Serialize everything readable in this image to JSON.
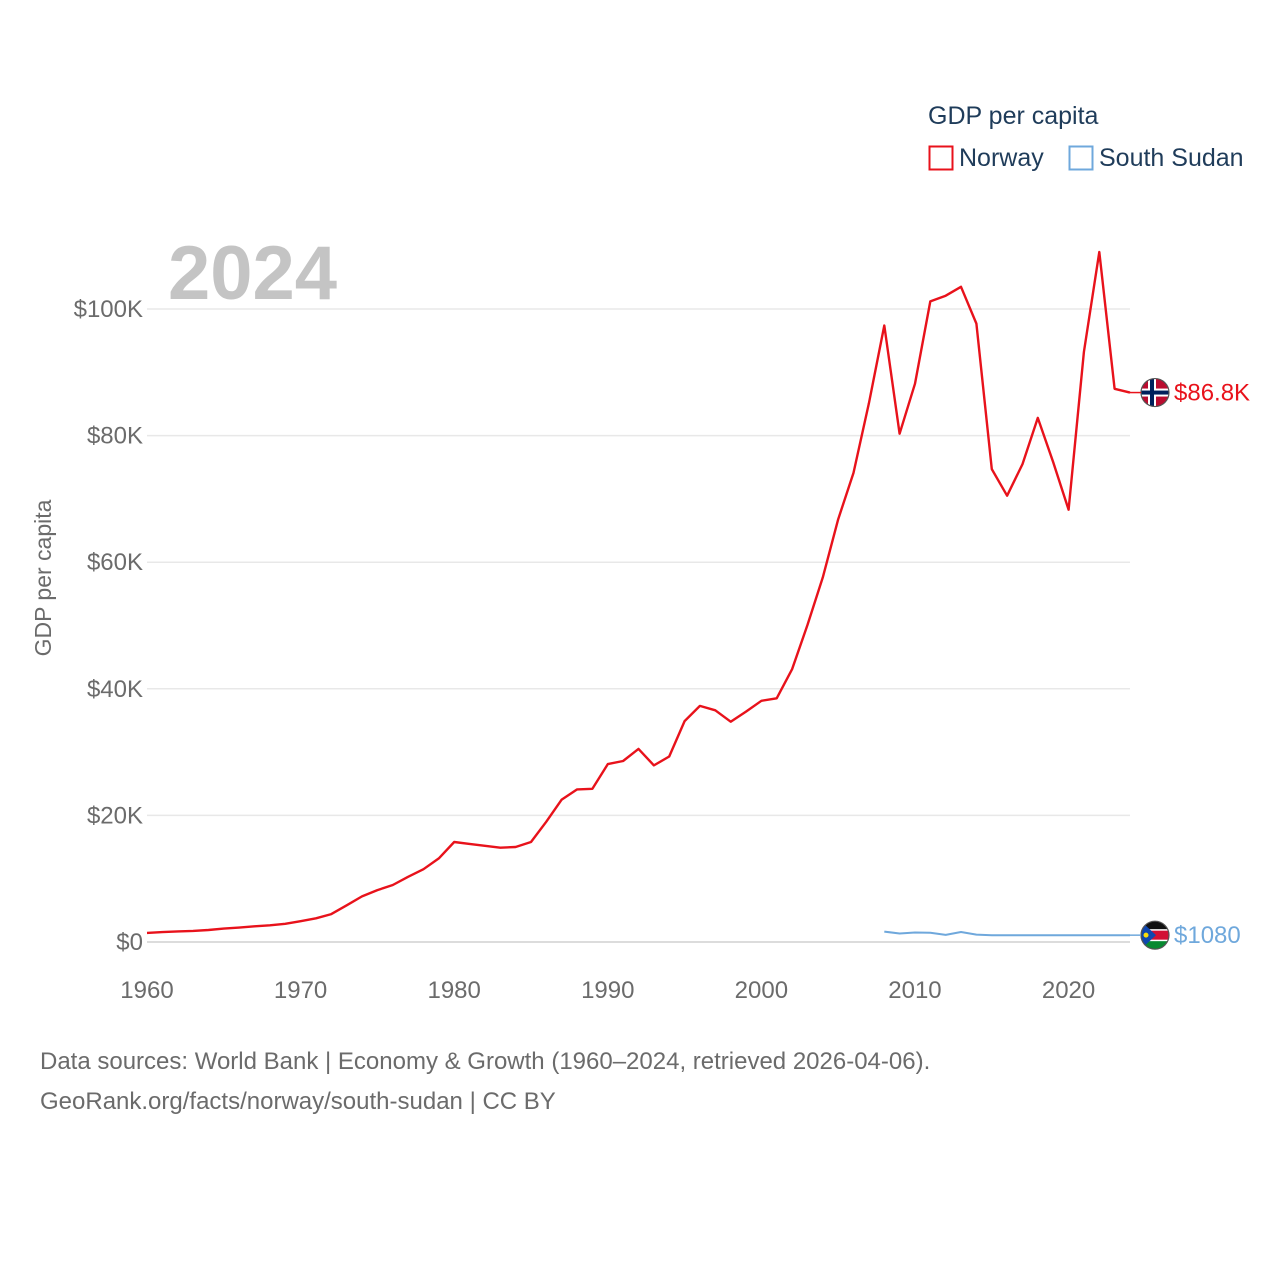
{
  "chart_data": {
    "type": "line",
    "year_label": "2024",
    "ylabel": "GDP per capita",
    "xlim": [
      1960,
      2024
    ],
    "ylim": [
      0,
      105000
    ],
    "y_ticks": [
      {
        "value": 0,
        "label": "$0"
      },
      {
        "value": 20000,
        "label": "$20K"
      },
      {
        "value": 40000,
        "label": "$40K"
      },
      {
        "value": 60000,
        "label": "$60K"
      },
      {
        "value": 80000,
        "label": "$80K"
      },
      {
        "value": 100000,
        "label": "$100K"
      }
    ],
    "x_ticks": [
      {
        "value": 1960,
        "label": "1960"
      },
      {
        "value": 1970,
        "label": "1970"
      },
      {
        "value": 1980,
        "label": "1980"
      },
      {
        "value": 1990,
        "label": "1990"
      },
      {
        "value": 2000,
        "label": "2000"
      },
      {
        "value": 2010,
        "label": "2010"
      },
      {
        "value": 2020,
        "label": "2020"
      }
    ],
    "legend": {
      "title": "GDP per capita",
      "position": "top-right"
    },
    "series": [
      {
        "name": "Norway",
        "color": "#e8121b",
        "end_label": "$86.8K",
        "flag": "norway-flag",
        "x": [
          1960,
          1961,
          1962,
          1963,
          1964,
          1965,
          1966,
          1967,
          1968,
          1969,
          1970,
          1971,
          1972,
          1973,
          1974,
          1975,
          1976,
          1977,
          1978,
          1979,
          1980,
          1981,
          1982,
          1983,
          1984,
          1985,
          1986,
          1987,
          1988,
          1989,
          1990,
          1991,
          1992,
          1993,
          1994,
          1995,
          1996,
          1997,
          1998,
          1999,
          2000,
          2001,
          2002,
          2003,
          2004,
          2005,
          2006,
          2007,
          2008,
          2009,
          2010,
          2011,
          2012,
          2013,
          2014,
          2015,
          2016,
          2017,
          2018,
          2019,
          2020,
          2021,
          2022,
          2023,
          2024
        ],
        "values": [
          1440,
          1560,
          1670,
          1760,
          1890,
          2110,
          2280,
          2480,
          2640,
          2870,
          3290,
          3740,
          4400,
          5800,
          7200,
          8200,
          9000,
          10300,
          11500,
          13200,
          15800,
          15500,
          15200,
          14900,
          15000,
          15800,
          19000,
          22500,
          24100,
          24200,
          28100,
          28600,
          30500,
          27900,
          29300,
          34900,
          37300,
          36600,
          34800,
          36400,
          38100,
          38500,
          43100,
          50100,
          57600,
          66800,
          74100,
          85100,
          97400,
          80300,
          88200,
          101200,
          102100,
          103500,
          97700,
          74700,
          70500,
          75500,
          82800,
          75800,
          68300,
          93200,
          109000,
          87400,
          86800
        ]
      },
      {
        "name": "South Sudan",
        "color": "#6fa8dc",
        "end_label": "$1080",
        "flag": "south-sudan-flag",
        "x": [
          2008,
          2009,
          2010,
          2011,
          2012,
          2013,
          2014,
          2015,
          2016,
          2017,
          2018,
          2019,
          2020,
          2021,
          2022,
          2023,
          2024
        ],
        "values": [
          1650,
          1350,
          1500,
          1460,
          1120,
          1580,
          1170,
          1080,
          1080,
          1080,
          1080,
          1080,
          1080,
          1080,
          1080,
          1080,
          1080
        ]
      }
    ]
  },
  "footer": {
    "line1": "Data sources: World Bank | Economy & Growth (1960–2024, retrieved 2026-04-06).",
    "line2": "GeoRank.org/facts/norway/south-sudan | CC BY"
  }
}
